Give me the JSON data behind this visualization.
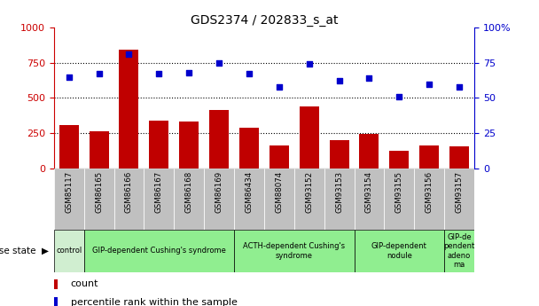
{
  "title": "GDS2374 / 202833_s_at",
  "samples": [
    "GSM85117",
    "GSM86165",
    "GSM86166",
    "GSM86167",
    "GSM86168",
    "GSM86169",
    "GSM86434",
    "GSM88074",
    "GSM93152",
    "GSM93153",
    "GSM93154",
    "GSM93155",
    "GSM93156",
    "GSM93157"
  ],
  "counts": [
    310,
    265,
    840,
    340,
    330,
    415,
    290,
    160,
    440,
    200,
    245,
    125,
    165,
    155
  ],
  "percentiles": [
    65,
    67,
    81,
    67,
    68,
    75,
    67,
    58,
    74,
    62,
    64,
    51,
    60,
    58
  ],
  "ylim_left": [
    0,
    1000
  ],
  "ylim_right": [
    0,
    100
  ],
  "yticks_left": [
    0,
    250,
    500,
    750,
    1000
  ],
  "yticks_right": [
    0,
    25,
    50,
    75,
    100
  ],
  "bar_color": "#C00000",
  "dot_color": "#0000CC",
  "bg_color": "#ffffff",
  "tick_bg": "#C0C0C0",
  "disease_groups": [
    {
      "label": "control",
      "start": 0,
      "end": 1,
      "color": "#d0eed0"
    },
    {
      "label": "GIP-dependent Cushing's syndrome",
      "start": 1,
      "end": 6,
      "color": "#90ee90"
    },
    {
      "label": "ACTH-dependent Cushing's\nsyndrome",
      "start": 6,
      "end": 10,
      "color": "#90ee90"
    },
    {
      "label": "GIP-dependent\nnodule",
      "start": 10,
      "end": 13,
      "color": "#90ee90"
    },
    {
      "label": "GIP-de\npendent\nadeno\nma",
      "start": 13,
      "end": 14,
      "color": "#90ee90"
    }
  ],
  "legend_count_label": "count",
  "legend_pct_label": "percentile rank within the sample",
  "left_axis_color": "#CC0000",
  "right_axis_color": "#0000CC",
  "grid_yticks": [
    250,
    500,
    750
  ]
}
